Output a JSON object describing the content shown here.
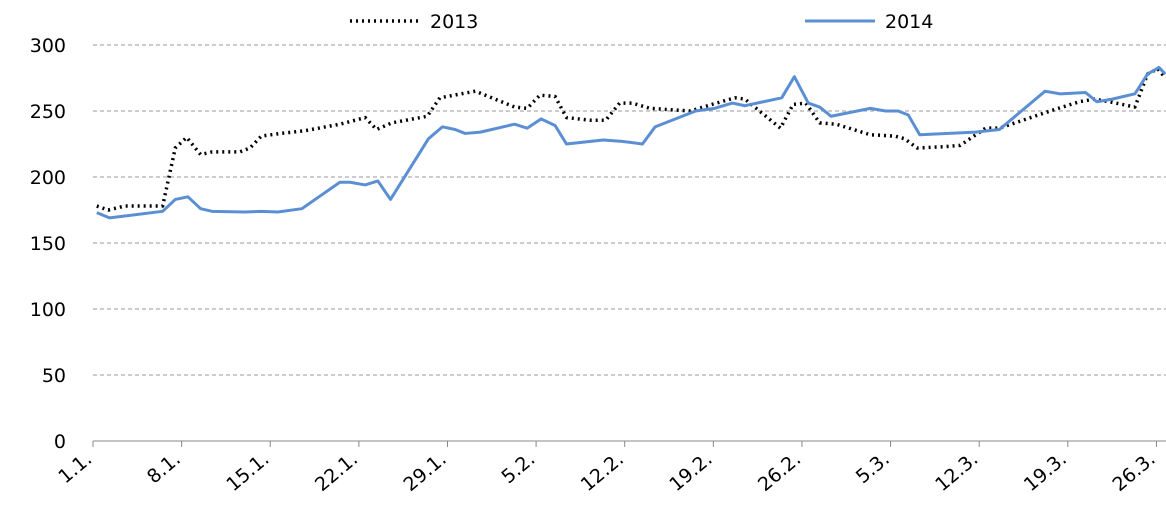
{
  "chart_data": {
    "type": "line",
    "xlim": [
      0,
      85
    ],
    "ylim": [
      0,
      300
    ],
    "yticks": [
      0,
      50,
      100,
      150,
      200,
      250,
      300
    ],
    "xticks": [
      {
        "value": 0,
        "label": "1.1."
      },
      {
        "value": 7,
        "label": "8.1."
      },
      {
        "value": 14,
        "label": "15.1."
      },
      {
        "value": 21,
        "label": "22.1."
      },
      {
        "value": 28,
        "label": "29.1."
      },
      {
        "value": 35,
        "label": "5.2."
      },
      {
        "value": 42,
        "label": "12.2."
      },
      {
        "value": 49,
        "label": "19.2."
      },
      {
        "value": 56,
        "label": "26.2."
      },
      {
        "value": 63,
        "label": "5.3."
      },
      {
        "value": 70,
        "label": "12.3."
      },
      {
        "value": 77,
        "label": "19.3."
      },
      {
        "value": 84,
        "label": "26.3."
      }
    ],
    "grid": true,
    "legend": "top",
    "series": [
      {
        "name": "2013",
        "color": "#000000",
        "dash": "dotted",
        "x": [
          0.3,
          1.2,
          2.5,
          5.5,
          6.5,
          7.4,
          8.5,
          9.4,
          11.6,
          12.4,
          13.3,
          14.8,
          16.7,
          19.5,
          21.5,
          22.4,
          23.6,
          26.4,
          27.4,
          30.2,
          33.3,
          34.3,
          35.3,
          36.5,
          37.4,
          39.3,
          40.5,
          41.6,
          42.6,
          44,
          47.2,
          48.9,
          50.7,
          51.5,
          54.3,
          55.3,
          56.3,
          57.4,
          58.7,
          61.4,
          63.3,
          64.1,
          65.1,
          67.3,
          68.5,
          70.5,
          71.6,
          75.6,
          77.9,
          79.1,
          80.3,
          82.3,
          83.3,
          84.1,
          84.7
        ],
        "values": [
          178,
          175,
          178,
          178,
          222,
          230,
          217,
          219,
          219,
          222,
          231,
          233,
          235,
          240,
          245,
          236,
          241,
          246,
          260,
          265,
          253,
          252,
          262,
          261,
          245,
          243,
          243,
          256,
          256,
          252,
          250,
          255,
          260,
          259,
          237,
          255,
          256,
          241,
          240,
          232,
          231,
          229,
          222,
          223,
          224,
          237,
          237,
          250,
          257,
          259,
          257,
          253,
          278,
          282,
          275
        ]
      },
      {
        "name": "2014",
        "color": "#5b8fd4",
        "dash": "solid",
        "x": [
          0.3,
          1.3,
          5.5,
          6.5,
          7.5,
          8.5,
          9.4,
          12,
          13.3,
          14.6,
          16.5,
          19.5,
          20.3,
          21.5,
          22.5,
          23.5,
          26.5,
          27.6,
          28.6,
          29.4,
          30.6,
          33.3,
          34.3,
          35.4,
          36.5,
          37.4,
          40.3,
          41.8,
          43.4,
          44.4,
          47.6,
          49.1,
          50.5,
          51.5,
          54.4,
          55.4,
          56.5,
          57.4,
          58.3,
          61.4,
          62.6,
          63.6,
          64.4,
          65.3,
          69.7,
          71.6,
          75.2,
          76.4,
          78.4,
          79.3,
          80.5,
          82.3,
          83.3,
          84.2,
          84.7
        ],
        "values": [
          173,
          169,
          174,
          183,
          185,
          176,
          174,
          173.5,
          174,
          173.5,
          176,
          196,
          196,
          194,
          197,
          183,
          229,
          238,
          236,
          233,
          234,
          240,
          237,
          244,
          239,
          225,
          228,
          227,
          225,
          238,
          250,
          252,
          256,
          254,
          260,
          276,
          256,
          253,
          246,
          252,
          250,
          250,
          247,
          232,
          234,
          236,
          265,
          263,
          264,
          257,
          259,
          263,
          278,
          283,
          278
        ]
      }
    ]
  }
}
